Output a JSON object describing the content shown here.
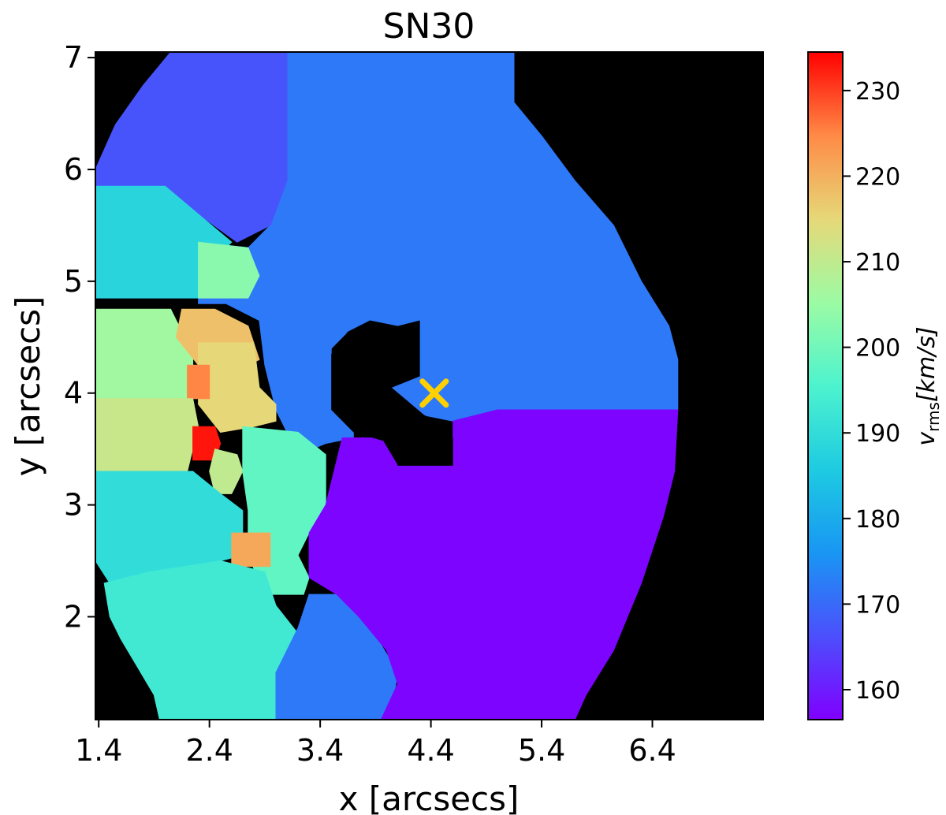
{
  "chart_data": {
    "type": "heatmap",
    "title": "SN30",
    "xlabel": "x [arcsecs]",
    "ylabel": "y [arcsecs]",
    "xlim": [
      1.37,
      7.4
    ],
    "ylim": [
      1.08,
      7.05
    ],
    "xticks": [
      1.4,
      2.4,
      3.4,
      4.4,
      5.4,
      6.4
    ],
    "xtick_labels": [
      "1.4",
      "2.4",
      "3.4",
      "4.4",
      "5.4",
      "6.4"
    ],
    "yticks": [
      2,
      3,
      4,
      5,
      6,
      7
    ],
    "ytick_labels": [
      "2",
      "3",
      "4",
      "5",
      "6",
      "7"
    ],
    "background_color": "#000000",
    "colormap": "rainbow",
    "colorbar": {
      "label": "v_rms [km/s]",
      "label_main": "v",
      "label_sub": "rms",
      "label_unit": "[km/s]",
      "vmin": 156.5,
      "vmax": 234.5,
      "ticks": [
        160,
        170,
        180,
        190,
        200,
        210,
        220,
        230
      ],
      "tick_labels": [
        "160",
        "170",
        "180",
        "190",
        "200",
        "210",
        "220",
        "230"
      ]
    },
    "marker": {
      "x": 4.43,
      "y": 4.0,
      "symbol": "x",
      "color": "#ffd000"
    },
    "regions": [
      {
        "name": "bin-upper-blue",
        "value": 172,
        "points": [
          [
            3.1,
            7.05
          ],
          [
            5.15,
            7.05
          ],
          [
            5.15,
            6.6
          ],
          [
            5.4,
            6.3
          ],
          [
            5.7,
            5.9
          ],
          [
            6.05,
            5.5
          ],
          [
            6.3,
            5.0
          ],
          [
            6.55,
            4.6
          ],
          [
            6.63,
            4.3
          ],
          [
            6.63,
            3.85
          ],
          [
            5.0,
            3.85
          ],
          [
            4.6,
            3.75
          ],
          [
            4.35,
            3.8
          ],
          [
            4.05,
            4.05
          ],
          [
            4.3,
            4.15
          ],
          [
            4.3,
            4.65
          ],
          [
            4.1,
            4.6
          ],
          [
            3.85,
            4.65
          ],
          [
            3.65,
            4.55
          ],
          [
            3.5,
            4.4
          ],
          [
            3.5,
            3.9
          ],
          [
            3.7,
            3.75
          ],
          [
            3.7,
            3.6
          ],
          [
            3.45,
            3.55
          ],
          [
            3.2,
            3.45
          ],
          [
            3.0,
            3.85
          ],
          [
            2.9,
            4.25
          ],
          [
            2.85,
            4.65
          ],
          [
            2.55,
            4.8
          ],
          [
            2.3,
            4.8
          ],
          [
            2.3,
            5.35
          ],
          [
            2.75,
            5.3
          ],
          [
            2.95,
            5.5
          ],
          [
            3.1,
            5.9
          ]
        ]
      },
      {
        "name": "bin-upper-left",
        "value": 167,
        "points": [
          [
            2.05,
            7.05
          ],
          [
            3.1,
            7.05
          ],
          [
            3.1,
            5.9
          ],
          [
            2.95,
            5.5
          ],
          [
            2.65,
            5.35
          ],
          [
            2.3,
            5.6
          ],
          [
            2.0,
            5.85
          ],
          [
            1.37,
            5.85
          ],
          [
            1.37,
            6.0
          ],
          [
            1.55,
            6.4
          ],
          [
            1.8,
            6.75
          ]
        ]
      },
      {
        "name": "bin-mid-left-teal",
        "value": 188,
        "points": [
          [
            1.37,
            5.85
          ],
          [
            2.0,
            5.85
          ],
          [
            2.3,
            5.6
          ],
          [
            2.6,
            5.35
          ],
          [
            2.3,
            5.05
          ],
          [
            2.3,
            4.85
          ],
          [
            1.37,
            4.85
          ]
        ]
      },
      {
        "name": "bin-green-small",
        "value": 203,
        "points": [
          [
            2.3,
            5.35
          ],
          [
            2.75,
            5.3
          ],
          [
            2.85,
            5.05
          ],
          [
            2.75,
            4.85
          ],
          [
            2.3,
            4.85
          ]
        ]
      },
      {
        "name": "bin-left-yellowgreen",
        "value": 206,
        "points": [
          [
            1.37,
            4.75
          ],
          [
            2.05,
            4.75
          ],
          [
            2.15,
            4.55
          ],
          [
            2.25,
            4.35
          ],
          [
            2.25,
            3.95
          ],
          [
            1.37,
            3.95
          ]
        ]
      },
      {
        "name": "bin-orange-a",
        "value": 218,
        "points": [
          [
            2.15,
            4.75
          ],
          [
            2.45,
            4.75
          ],
          [
            2.75,
            4.6
          ],
          [
            2.85,
            4.3
          ],
          [
            2.55,
            4.15
          ],
          [
            2.3,
            4.25
          ],
          [
            2.1,
            4.5
          ]
        ]
      },
      {
        "name": "bin-orange-b",
        "value": 215,
        "points": [
          [
            2.3,
            4.45
          ],
          [
            2.8,
            4.45
          ],
          [
            2.85,
            4.05
          ],
          [
            3.0,
            3.9
          ],
          [
            3.0,
            3.75
          ],
          [
            2.8,
            3.7
          ],
          [
            2.5,
            3.65
          ],
          [
            2.3,
            3.9
          ]
        ]
      },
      {
        "name": "bin-red-small",
        "value": 225,
        "points": [
          [
            2.2,
            4.25
          ],
          [
            2.4,
            4.25
          ],
          [
            2.4,
            3.95
          ],
          [
            2.2,
            3.95
          ]
        ]
      },
      {
        "name": "bin-left-tan",
        "value": 211,
        "points": [
          [
            1.37,
            3.95
          ],
          [
            2.25,
            3.95
          ],
          [
            2.3,
            3.7
          ],
          [
            2.2,
            3.3
          ],
          [
            1.37,
            3.3
          ]
        ]
      },
      {
        "name": "bin-red-core",
        "value": 233,
        "points": [
          [
            2.25,
            3.7
          ],
          [
            2.45,
            3.7
          ],
          [
            2.5,
            3.55
          ],
          [
            2.45,
            3.4
          ],
          [
            2.25,
            3.4
          ]
        ]
      },
      {
        "name": "bin-tan-small",
        "value": 210,
        "points": [
          [
            2.45,
            3.5
          ],
          [
            2.65,
            3.45
          ],
          [
            2.7,
            3.3
          ],
          [
            2.6,
            3.1
          ],
          [
            2.45,
            3.1
          ],
          [
            2.4,
            3.3
          ]
        ]
      },
      {
        "name": "bin-green-right",
        "value": 198,
        "points": [
          [
            2.7,
            3.7
          ],
          [
            3.2,
            3.65
          ],
          [
            3.45,
            3.45
          ],
          [
            3.45,
            3.0
          ],
          [
            3.3,
            2.75
          ],
          [
            3.2,
            2.55
          ],
          [
            3.3,
            2.35
          ],
          [
            3.25,
            2.2
          ],
          [
            2.9,
            2.2
          ],
          [
            2.75,
            2.55
          ],
          [
            2.75,
            2.95
          ],
          [
            2.7,
            3.3
          ]
        ]
      },
      {
        "name": "bin-lower-left-teal",
        "value": 190,
        "points": [
          [
            1.37,
            3.3
          ],
          [
            2.25,
            3.3
          ],
          [
            2.5,
            3.1
          ],
          [
            2.7,
            2.95
          ],
          [
            2.7,
            2.55
          ],
          [
            2.5,
            2.5
          ],
          [
            2.2,
            2.4
          ],
          [
            1.85,
            2.4
          ],
          [
            1.5,
            2.3
          ],
          [
            1.37,
            2.5
          ]
        ]
      },
      {
        "name": "bin-orange-c",
        "value": 221,
        "points": [
          [
            2.6,
            2.75
          ],
          [
            2.95,
            2.75
          ],
          [
            2.95,
            2.45
          ],
          [
            2.6,
            2.45
          ]
        ]
      },
      {
        "name": "bin-bottom-green",
        "value": 193,
        "points": [
          [
            1.45,
            2.3
          ],
          [
            1.85,
            2.4
          ],
          [
            2.5,
            2.5
          ],
          [
            2.9,
            2.4
          ],
          [
            3.0,
            2.1
          ],
          [
            3.2,
            1.85
          ],
          [
            3.2,
            1.6
          ],
          [
            3.0,
            1.08
          ],
          [
            1.95,
            1.08
          ],
          [
            1.9,
            1.3
          ],
          [
            1.75,
            1.55
          ],
          [
            1.6,
            1.8
          ],
          [
            1.5,
            2.0
          ]
        ]
      },
      {
        "name": "bin-bottom-blue",
        "value": 172,
        "points": [
          [
            3.0,
            1.08
          ],
          [
            3.95,
            1.08
          ],
          [
            4.05,
            1.2
          ],
          [
            4.1,
            1.5
          ],
          [
            3.95,
            1.75
          ],
          [
            3.75,
            2.0
          ],
          [
            3.55,
            2.2
          ],
          [
            3.3,
            2.2
          ],
          [
            3.2,
            1.9
          ],
          [
            3.0,
            1.5
          ]
        ]
      },
      {
        "name": "bin-lower-purple",
        "value": 157,
        "points": [
          [
            3.95,
            1.08
          ],
          [
            5.7,
            1.08
          ],
          [
            5.8,
            1.3
          ],
          [
            6.05,
            1.7
          ],
          [
            6.3,
            2.3
          ],
          [
            6.5,
            2.9
          ],
          [
            6.6,
            3.3
          ],
          [
            6.63,
            3.85
          ],
          [
            5.0,
            3.85
          ],
          [
            4.6,
            3.75
          ],
          [
            4.6,
            3.35
          ],
          [
            4.1,
            3.35
          ],
          [
            3.95,
            3.6
          ],
          [
            3.6,
            3.6
          ],
          [
            3.45,
            3.0
          ],
          [
            3.3,
            2.75
          ],
          [
            3.3,
            2.35
          ],
          [
            3.55,
            2.2
          ],
          [
            3.75,
            2.0
          ],
          [
            4.0,
            1.7
          ],
          [
            4.1,
            1.4
          ]
        ]
      }
    ],
    "holes": [
      {
        "name": "central-hole",
        "points": [
          [
            3.5,
            4.35
          ],
          [
            3.65,
            4.55
          ],
          [
            3.85,
            4.65
          ],
          [
            4.1,
            4.6
          ],
          [
            4.3,
            4.65
          ],
          [
            4.3,
            4.15
          ],
          [
            4.05,
            4.05
          ],
          [
            4.05,
            3.85
          ],
          [
            4.35,
            3.8
          ],
          [
            4.6,
            3.6
          ],
          [
            4.6,
            3.35
          ],
          [
            4.1,
            3.35
          ],
          [
            4.05,
            3.55
          ],
          [
            3.7,
            3.65
          ],
          [
            3.5,
            3.85
          ]
        ]
      }
    ]
  }
}
